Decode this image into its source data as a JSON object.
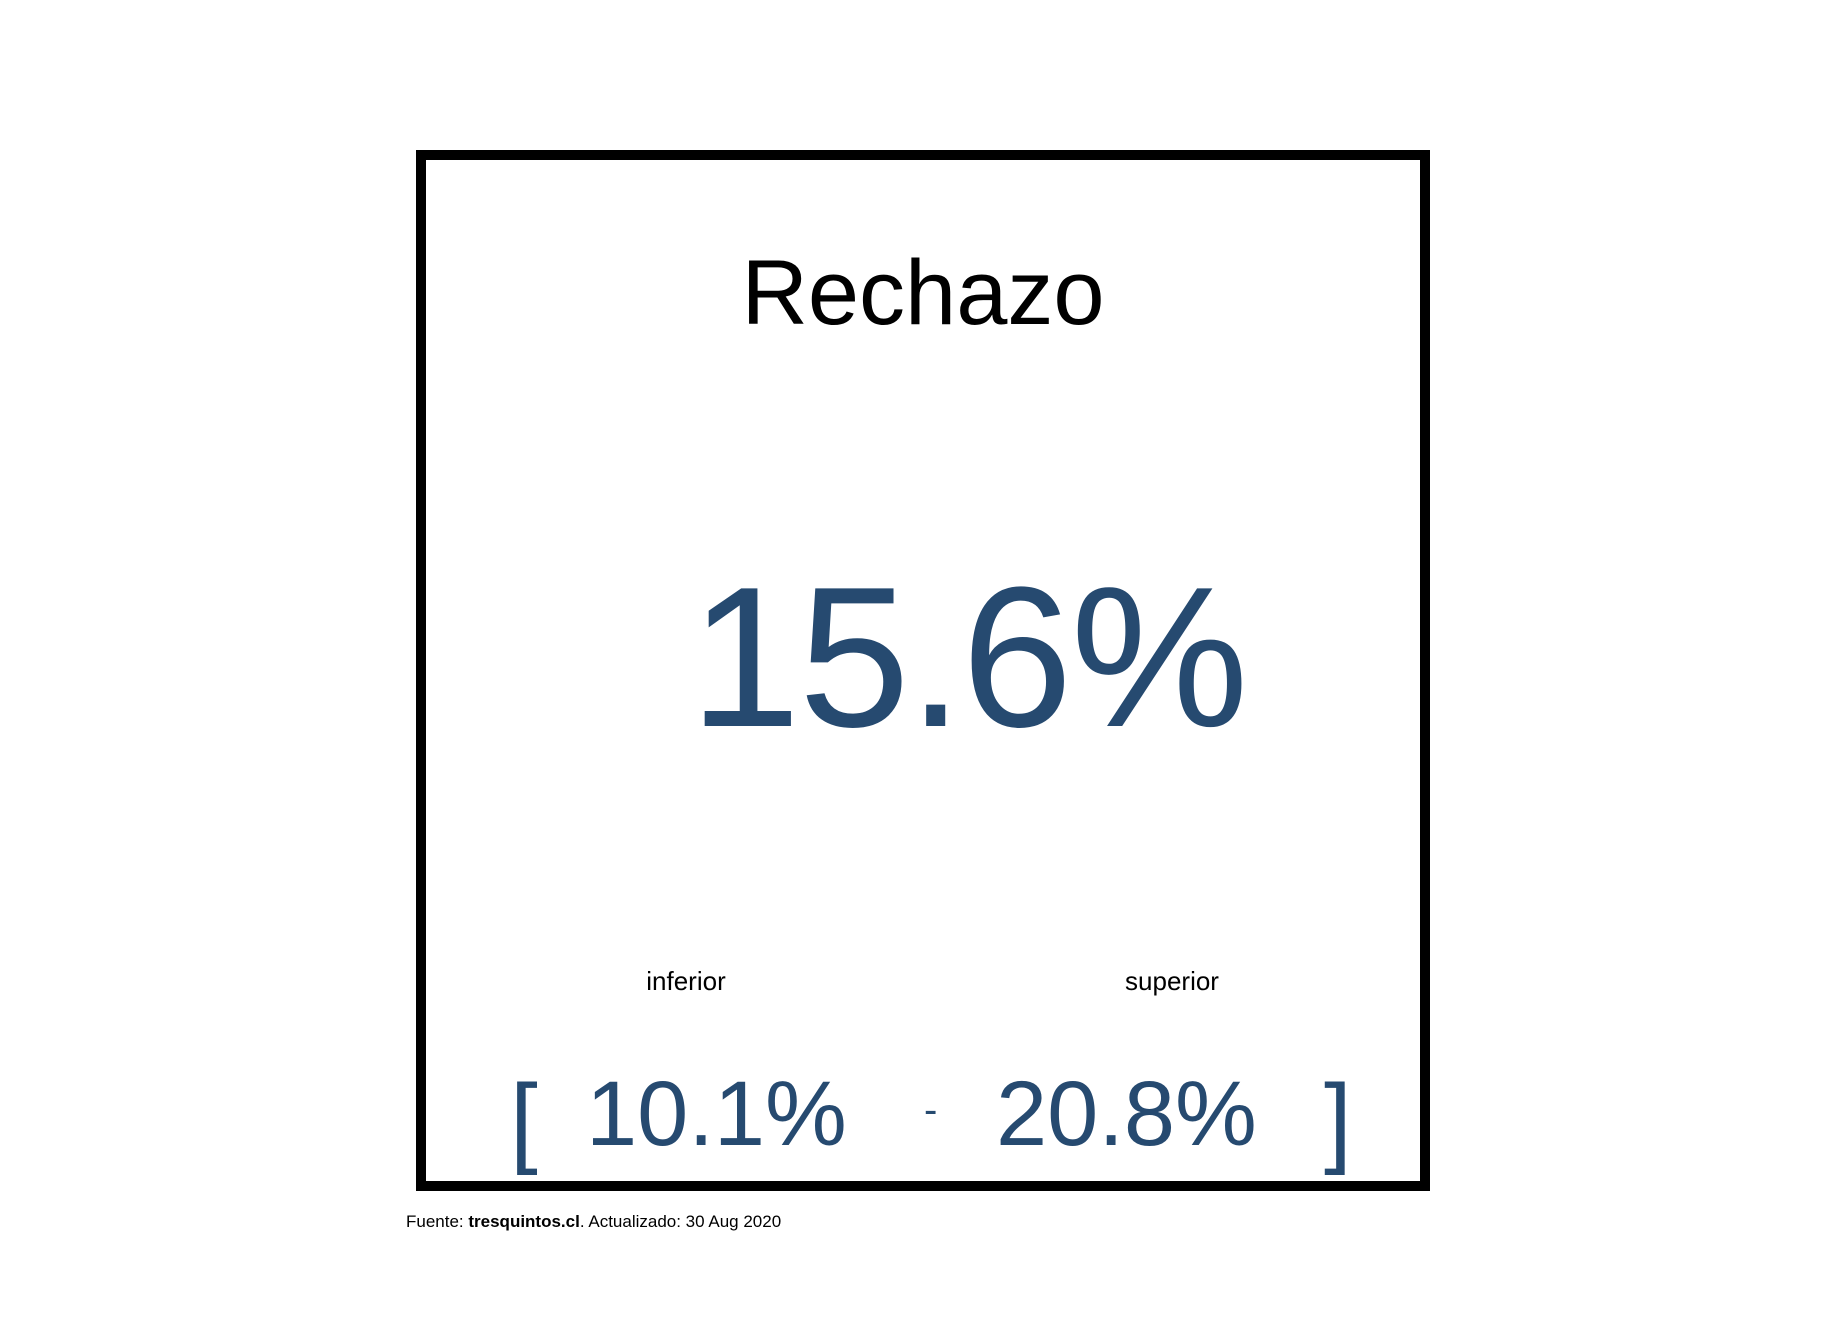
{
  "card": {
    "title": "Rechazo",
    "value": "15.6%",
    "accent_color": "#264a70",
    "range": {
      "lower_label": "inferior",
      "upper_label": "superior",
      "open_bracket": "[",
      "lower_value": "10.1%",
      "separator": "-",
      "upper_value": "20.8%",
      "close_bracket": "]"
    }
  },
  "footer": {
    "source_prefix": "Fuente: ",
    "source_name": "tresquintos.cl",
    "updated_text": ". Actualizado: 30 Aug 2020"
  }
}
